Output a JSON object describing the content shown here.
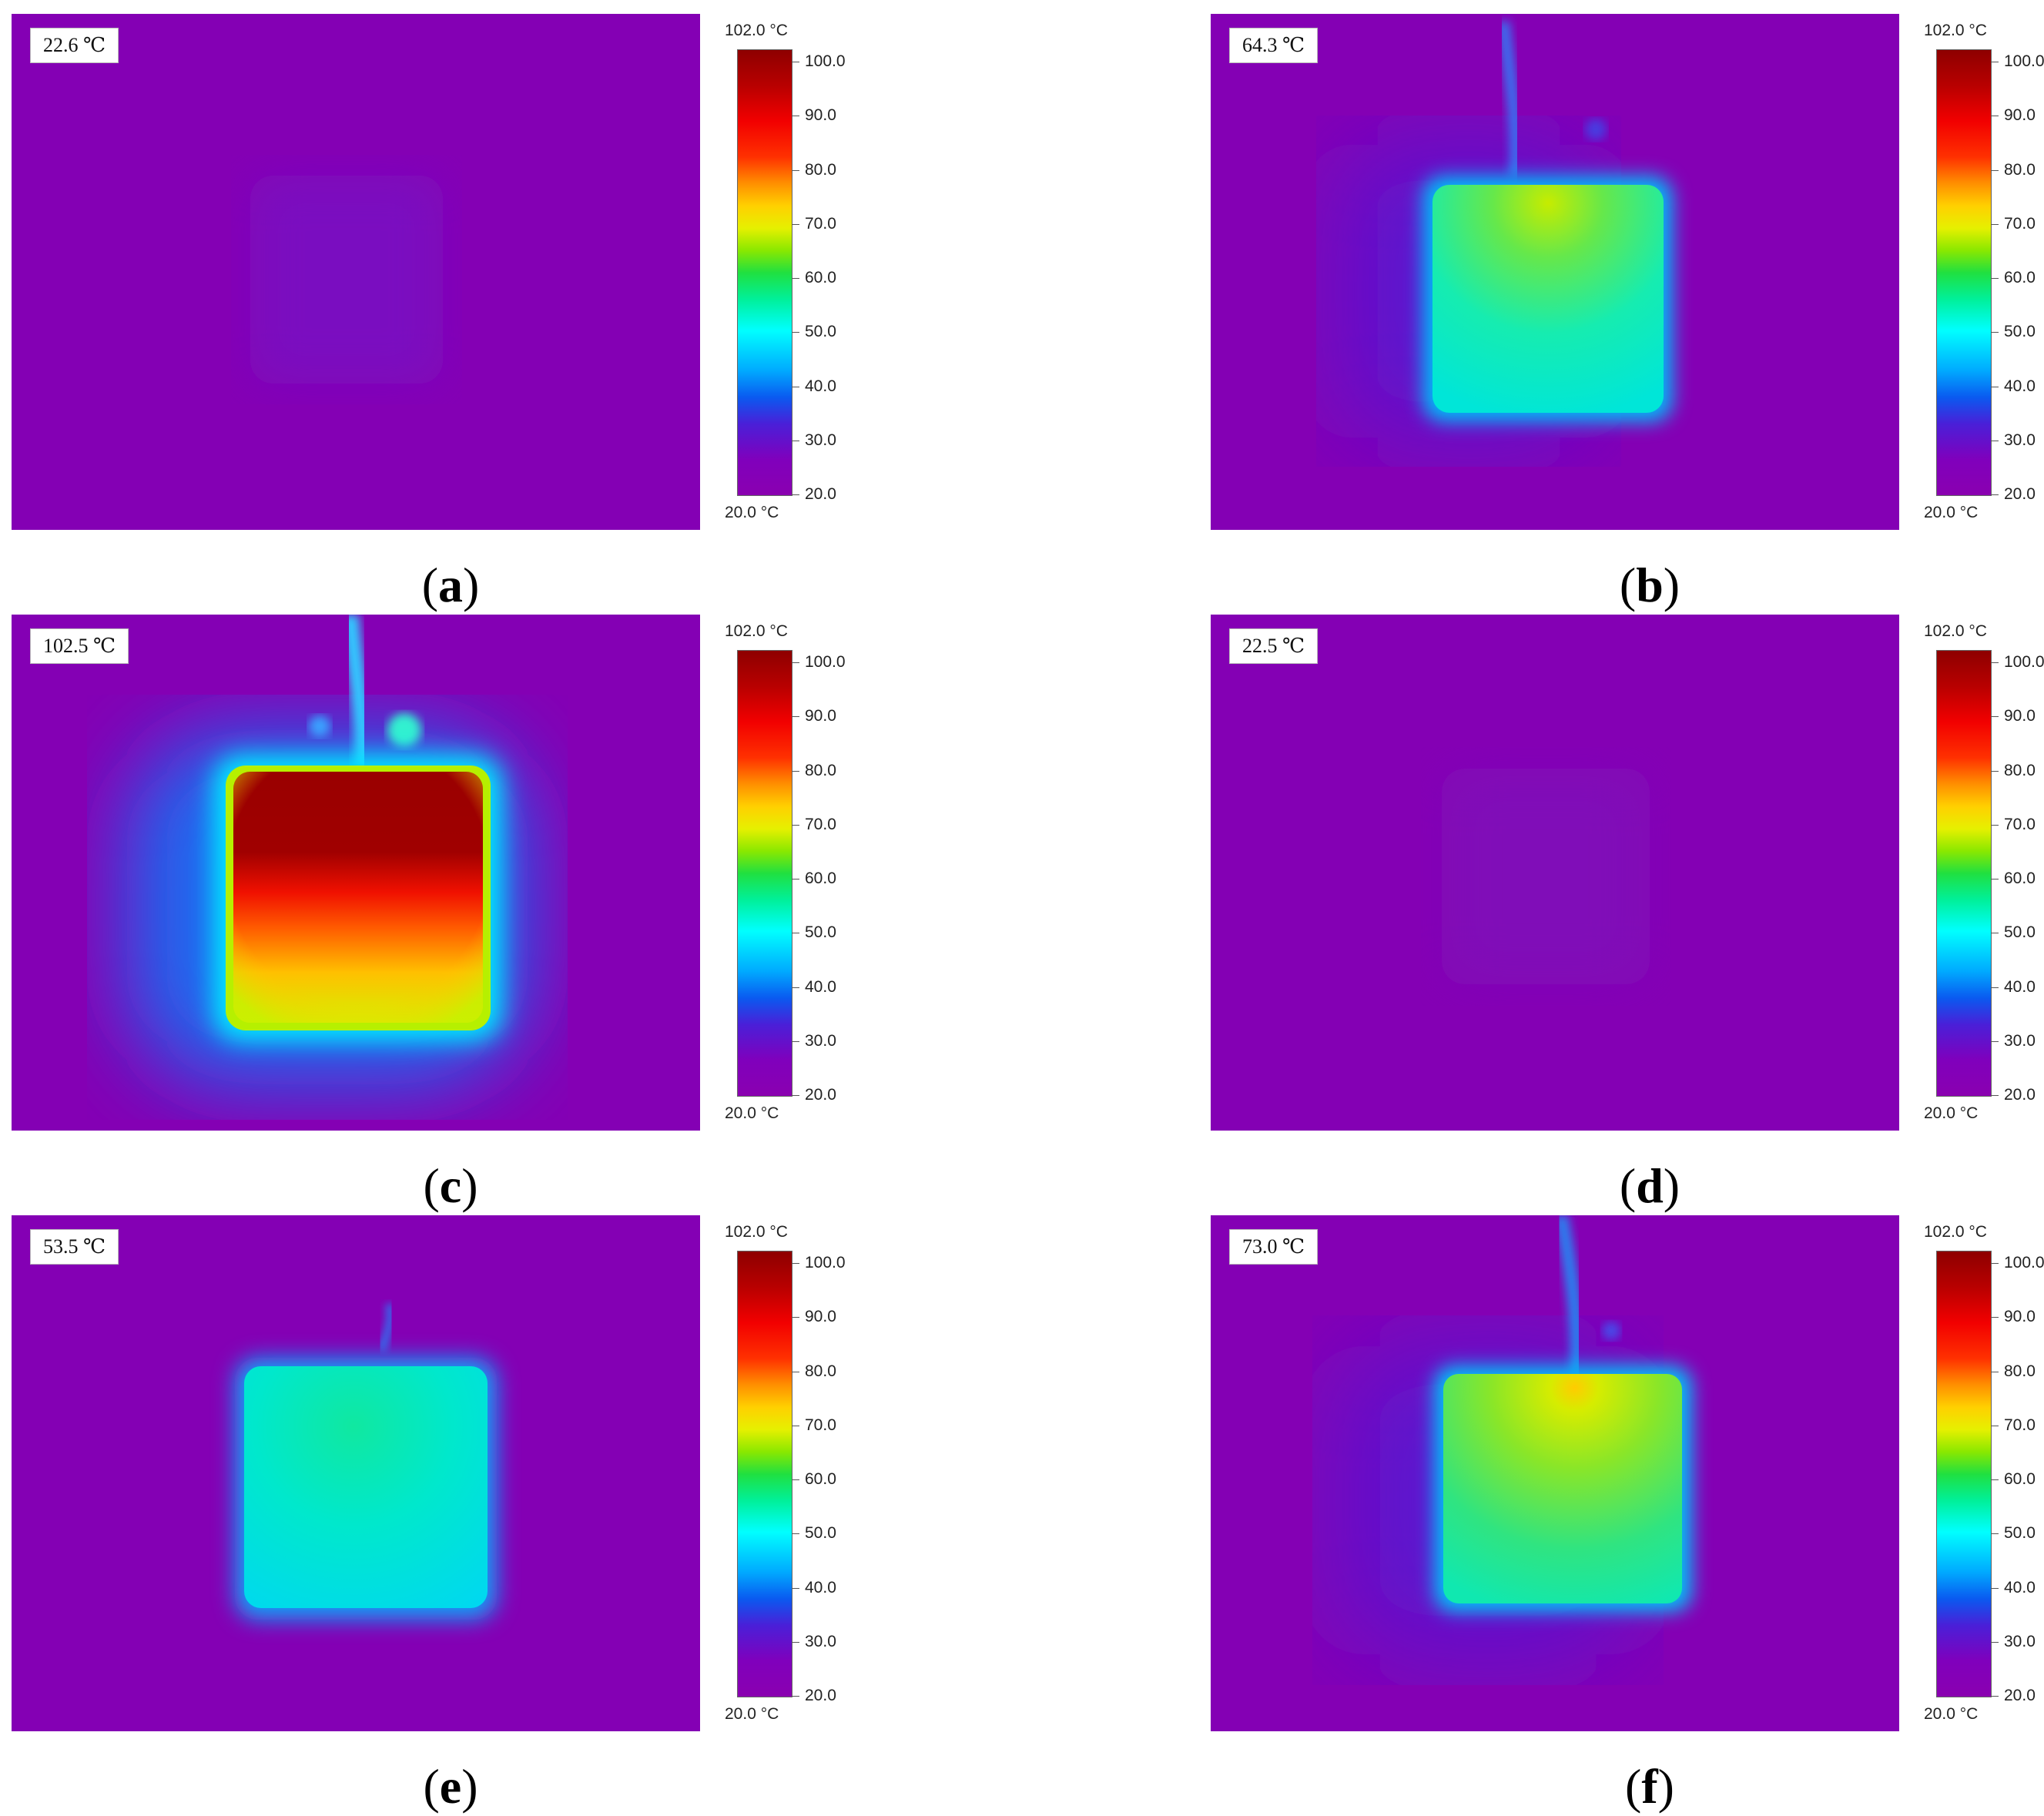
{
  "panels": [
    {
      "id": "a",
      "caption_letter": "a",
      "readout": "22.6 ℃",
      "scale_max": "102.0 °C",
      "scale_min": "20.0 °C"
    },
    {
      "id": "b",
      "caption_letter": "b",
      "readout": "64.3 ℃",
      "scale_max": "102.0 °C",
      "scale_min": "20.0 °C"
    },
    {
      "id": "c",
      "caption_letter": "c",
      "readout": "102.5 ℃",
      "scale_max": "102.0 °C",
      "scale_min": "20.0 °C"
    },
    {
      "id": "d",
      "caption_letter": "d",
      "readout": "22.5 ℃",
      "scale_max": "102.0 °C",
      "scale_min": "20.0 °C"
    },
    {
      "id": "e",
      "caption_letter": "e",
      "readout": "53.5 ℃",
      "scale_max": "102.0 °C",
      "scale_min": "20.0 °C"
    },
    {
      "id": "f",
      "caption_letter": "f",
      "readout": "73.0 ℃",
      "scale_max": "102.0 °C",
      "scale_min": "20.0 °C"
    }
  ],
  "scale_ticks": [
    "100.0",
    "90.0",
    "80.0",
    "70.0",
    "60.0",
    "50.0",
    "40.0",
    "30.0",
    "20.0"
  ],
  "colors": {
    "background": "#8400b4",
    "cool": "#00e8c0",
    "warm": "#a8e600",
    "hot": "#9a0000",
    "red": "#ff1a00",
    "yellow": "#ffd400"
  }
}
